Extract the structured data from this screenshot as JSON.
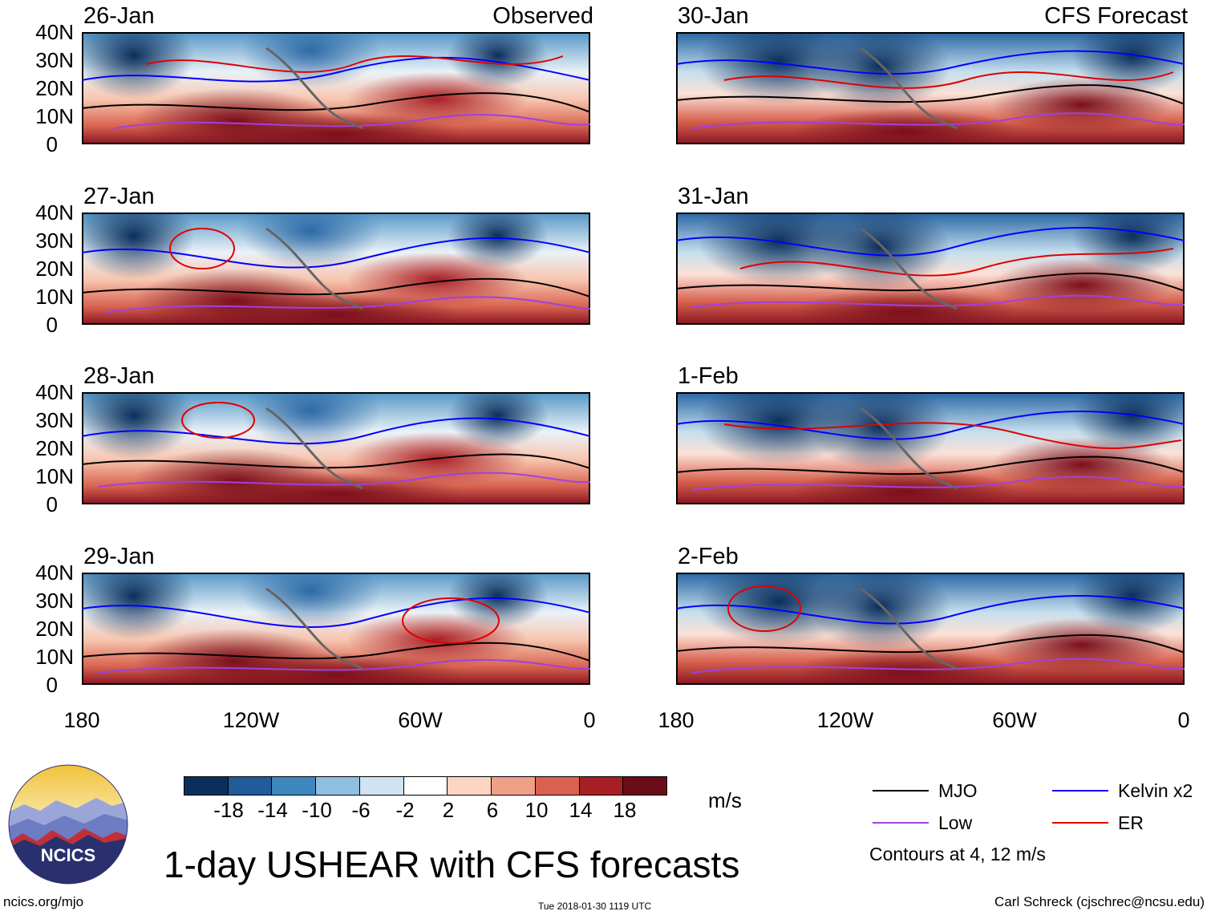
{
  "panels": {
    "left": [
      {
        "date": "26-Jan",
        "source": "Observed"
      },
      {
        "date": "27-Jan",
        "source": ""
      },
      {
        "date": "28-Jan",
        "source": ""
      },
      {
        "date": "29-Jan",
        "source": ""
      }
    ],
    "right": [
      {
        "date": "30-Jan",
        "source": "CFS Forecast"
      },
      {
        "date": "31-Jan",
        "source": ""
      },
      {
        "date": "1-Feb",
        "source": ""
      },
      {
        "date": "2-Feb",
        "source": ""
      }
    ]
  },
  "axes": {
    "y_ticks": [
      "40N",
      "30N",
      "20N",
      "10N",
      "0"
    ],
    "x_ticks": [
      "180",
      "120W",
      "60W",
      "0"
    ]
  },
  "colorbar": {
    "colors": [
      "#0b2f5c",
      "#1f5c99",
      "#3d86be",
      "#8fbfe0",
      "#cfe3f0",
      "#ffffff",
      "#fbd5c2",
      "#f0a086",
      "#d8624f",
      "#a81e25",
      "#6b0d18"
    ],
    "ticks": [
      "-18",
      "-14",
      "-10",
      "-6",
      "-2",
      "2",
      "6",
      "10",
      "14",
      "18"
    ],
    "units": "m/s"
  },
  "title": "1-day USHEAR with CFS forecasts",
  "legend": [
    {
      "label": "MJO",
      "color": "#000000"
    },
    {
      "label": "Kelvin x2",
      "color": "#0000ff"
    },
    {
      "label": "Low",
      "color": "#a040e0"
    },
    {
      "label": "ER",
      "color": "#e00000"
    }
  ],
  "contour_note": "Contours at 4, 12 m/s",
  "logo_text": "NCICS",
  "footer": {
    "left": "ncics.org/mjo",
    "center": "Tue 2018-01-30 1119 UTC",
    "right": "Carl Schreck (cjschrec@ncsu.edu)"
  }
}
